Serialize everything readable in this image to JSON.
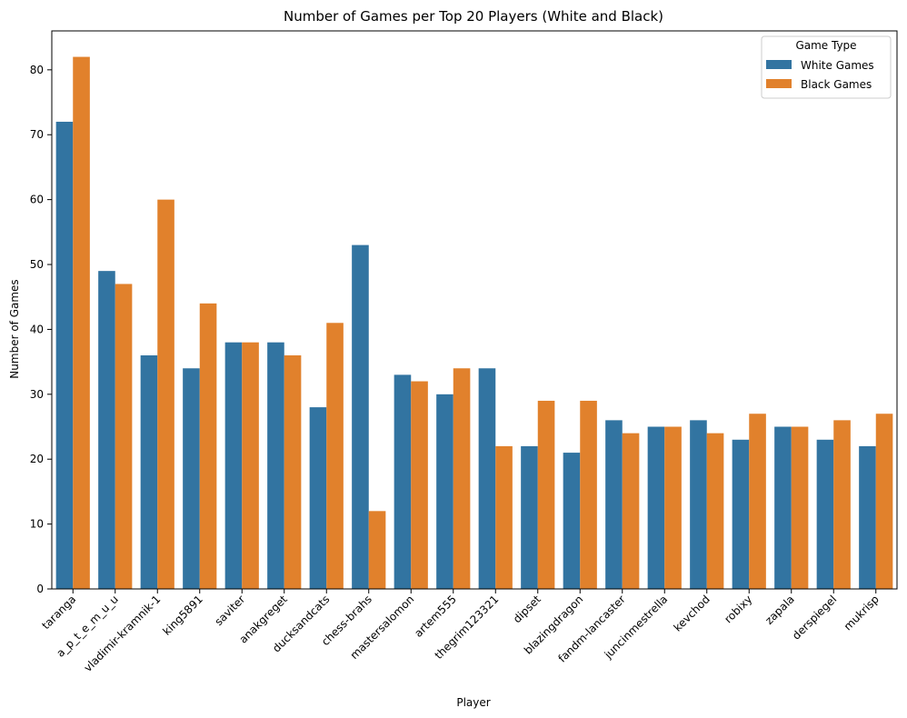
{
  "colors": {
    "white_games": "#3274a1",
    "black_games": "#e1812c",
    "axis": "#000000",
    "legend_border": "#cccccc"
  },
  "chart_data": {
    "type": "bar",
    "title": "Number of Games per Top 20 Players (White and Black)",
    "xlabel": "Player",
    "ylabel": "Number of Games",
    "ylim": [
      0,
      86
    ],
    "yticks": [
      0,
      10,
      20,
      30,
      40,
      50,
      60,
      70,
      80
    ],
    "grid": false,
    "legend": {
      "title": "Game Type",
      "placement": "top-right"
    },
    "categories": [
      "taranga",
      "a_p_t_e_m_u_u",
      "vladimir-kramnik-1",
      "king5891",
      "saviter",
      "anakgreget",
      "ducksandcats",
      "chess-brahs",
      "mastersalomon",
      "artem555",
      "thegrim123321",
      "dipset",
      "blazingdragon",
      "fandm-lancaster",
      "juncinmestrella",
      "kevchod",
      "robixy",
      "zapala",
      "derspiegel",
      "mukrisp"
    ],
    "series": [
      {
        "name": "White Games",
        "color": "#3274a1",
        "values": [
          72,
          49,
          36,
          34,
          38,
          38,
          28,
          53,
          33,
          30,
          34,
          22,
          21,
          26,
          25,
          26,
          23,
          25,
          23,
          22
        ]
      },
      {
        "name": "Black Games",
        "color": "#e1812c",
        "values": [
          82,
          47,
          60,
          44,
          38,
          36,
          41,
          12,
          32,
          34,
          22,
          29,
          29,
          24,
          25,
          24,
          27,
          25,
          26,
          27
        ]
      }
    ]
  }
}
